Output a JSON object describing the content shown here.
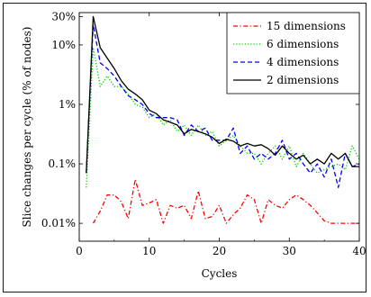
{
  "chart_data": {
    "type": "line",
    "title": "",
    "xlabel": "Cycles",
    "ylabel": "Slice changes per cycle (% of nodes)",
    "xlim": [
      0,
      40
    ],
    "ylim": [
      0.005,
      35
    ],
    "yscale": "log",
    "grid": false,
    "legend_position": "top-right",
    "x_ticks": [
      0,
      10,
      20,
      30,
      40
    ],
    "y_ticks": [
      {
        "value": 0.01,
        "label": "0.01%"
      },
      {
        "value": 0.1,
        "label": "0.1%"
      },
      {
        "value": 1,
        "label": "1%"
      },
      {
        "value": 10,
        "label": "10%"
      },
      {
        "value": 30,
        "label": "30%"
      }
    ],
    "series": [
      {
        "name": "15 dimensions",
        "color": "#ff0000",
        "dash": "dashdot",
        "x": [
          2,
          3,
          4,
          5,
          6,
          7,
          8,
          9,
          10,
          11,
          12,
          13,
          14,
          15,
          16,
          17,
          18,
          19,
          20,
          21,
          22,
          23,
          24,
          25,
          26,
          27,
          28,
          29,
          30,
          31,
          32,
          33,
          34,
          35,
          36,
          37,
          38,
          39,
          40
        ],
        "values": [
          0.01,
          0.016,
          0.03,
          0.03,
          0.023,
          0.012,
          0.055,
          0.02,
          0.022,
          0.025,
          0.01,
          0.02,
          0.018,
          0.02,
          0.012,
          0.035,
          0.012,
          0.013,
          0.02,
          0.01,
          0.014,
          0.018,
          0.03,
          0.025,
          0.01,
          0.025,
          0.02,
          0.018,
          0.025,
          0.03,
          0.025,
          0.02,
          0.015,
          0.011,
          0.01,
          0.01,
          0.01,
          0.01,
          0.01
        ]
      },
      {
        "name": "6 dimensions",
        "color": "#00cc00",
        "dash": "dotted",
        "x": [
          1,
          2,
          3,
          4,
          5,
          6,
          7,
          8,
          9,
          10,
          11,
          12,
          13,
          14,
          15,
          16,
          17,
          18,
          19,
          20,
          21,
          22,
          23,
          24,
          25,
          26,
          27,
          28,
          29,
          30,
          31,
          32,
          33,
          34,
          35,
          36,
          37,
          38,
          39,
          40
        ],
        "values": [
          0.04,
          9,
          2,
          3,
          2,
          2,
          1.5,
          1,
          0.9,
          0.6,
          0.7,
          0.45,
          0.55,
          0.35,
          0.45,
          0.3,
          0.45,
          0.3,
          0.35,
          0.2,
          0.25,
          0.3,
          0.2,
          0.15,
          0.15,
          0.1,
          0.15,
          0.2,
          0.12,
          0.2,
          0.09,
          0.15,
          0.1,
          0.07,
          0.08,
          0.09,
          0.1,
          0.08,
          0.2,
          0.12
        ]
      },
      {
        "name": "4 dimensions",
        "color": "#0000ff",
        "dash": "dashed",
        "x": [
          1,
          2,
          3,
          4,
          5,
          6,
          7,
          8,
          9,
          10,
          11,
          12,
          13,
          14,
          15,
          16,
          17,
          18,
          19,
          20,
          21,
          22,
          23,
          24,
          25,
          26,
          27,
          28,
          29,
          30,
          31,
          32,
          33,
          34,
          35,
          36,
          37,
          38,
          39,
          40
        ],
        "values": [
          0.07,
          22,
          5,
          4,
          3,
          2,
          1.4,
          1.2,
          1,
          0.7,
          0.6,
          0.6,
          0.6,
          0.55,
          0.3,
          0.45,
          0.35,
          0.4,
          0.25,
          0.25,
          0.25,
          0.4,
          0.15,
          0.2,
          0.12,
          0.15,
          0.12,
          0.15,
          0.25,
          0.12,
          0.15,
          0.1,
          0.07,
          0.1,
          0.06,
          0.12,
          0.04,
          0.15,
          0.09,
          0.1
        ]
      },
      {
        "name": "2 dimensions",
        "color": "#000000",
        "dash": "solid",
        "x": [
          1,
          2,
          3,
          4,
          5,
          6,
          7,
          8,
          9,
          10,
          11,
          12,
          13,
          14,
          15,
          16,
          17,
          18,
          19,
          20,
          21,
          22,
          23,
          24,
          25,
          26,
          27,
          28,
          29,
          30,
          31,
          32,
          33,
          34,
          35,
          36,
          37,
          38,
          39,
          40
        ],
        "values": [
          0.07,
          30,
          9,
          6,
          4,
          2.5,
          1.8,
          1.5,
          1.2,
          0.8,
          0.7,
          0.55,
          0.5,
          0.45,
          0.32,
          0.38,
          0.35,
          0.32,
          0.28,
          0.22,
          0.26,
          0.24,
          0.2,
          0.22,
          0.2,
          0.21,
          0.18,
          0.14,
          0.2,
          0.15,
          0.12,
          0.14,
          0.1,
          0.12,
          0.1,
          0.15,
          0.12,
          0.15,
          0.09,
          0.09
        ]
      }
    ]
  }
}
